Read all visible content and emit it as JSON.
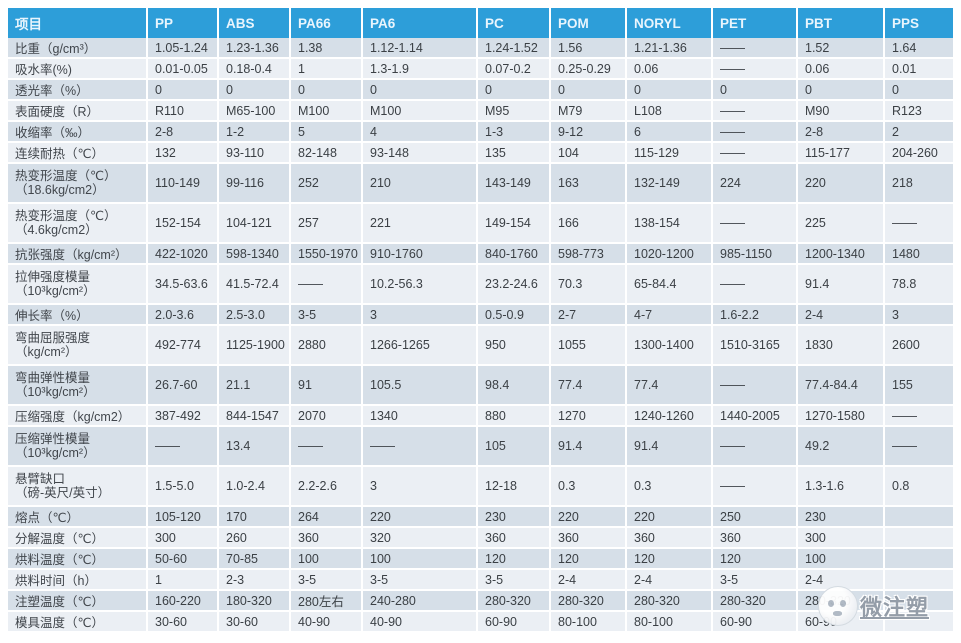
{
  "colors": {
    "header_bg": "#2d9ed9",
    "header_text": "#e9f5fd",
    "row_odd": "#d6dfe8",
    "row_even": "#ebeff4",
    "cell_text": "#3b4045"
  },
  "watermark": {
    "text": "微注塑",
    "logo": "mascot-face-icon"
  },
  "table": {
    "columns": [
      "项目",
      "PP",
      "ABS",
      "PA66",
      "PA6",
      "PC",
      "POM",
      "NORYL",
      "PET",
      "PBT",
      "PPS"
    ],
    "rows": [
      {
        "label": "比重（g/cm³）",
        "values": [
          "1.05-1.24",
          "1.23-1.36",
          "1.38",
          "1.12-1.14",
          "1.24-1.52",
          "1.56",
          "1.21-1.36",
          "——",
          "1.52",
          "1.64"
        ]
      },
      {
        "label": "吸水率(%)",
        "values": [
          "0.01-0.05",
          "0.18-0.4",
          "1",
          "1.3-1.9",
          "0.07-0.2",
          "0.25-0.29",
          "0.06",
          "——",
          "0.06",
          "0.01"
        ]
      },
      {
        "label": "透光率（%）",
        "values": [
          "0",
          "0",
          "0",
          "0",
          "0",
          "0",
          "0",
          "0",
          "0",
          "0"
        ]
      },
      {
        "label": "表面硬度（R）",
        "values": [
          "R110",
          "M65-100",
          "M100",
          "M100",
          "M95",
          "M79",
          "L108",
          "——",
          "M90",
          "R123"
        ]
      },
      {
        "label": "收缩率（‰）",
        "values": [
          "2-8",
          "1-2",
          "5",
          "4",
          "1-3",
          "9-12",
          "6",
          "——",
          "2-8",
          "2"
        ]
      },
      {
        "label": "连续耐热（℃）",
        "values": [
          "132",
          "93-110",
          "82-148",
          "93-148",
          "135",
          "104",
          "115-129",
          "——",
          "115-177",
          "204-260"
        ]
      },
      {
        "label": "热变形温度（℃）",
        "label2": "（18.6kg/cm2）",
        "values": [
          "110-149",
          "99-116",
          "252",
          "210",
          "143-149",
          "163",
          "132-149",
          "224",
          "220",
          "218"
        ]
      },
      {
        "label": "热变形温度（℃）",
        "label2": "（4.6kg/cm2）",
        "values": [
          "152-154",
          "104-121",
          "257",
          "221",
          "149-154",
          "166",
          "138-154",
          "——",
          "225",
          "——"
        ]
      },
      {
        "label": "抗张强度（kg/cm²）",
        "values": [
          "422-1020",
          "598-1340",
          "1550-1970",
          "910-1760",
          "840-1760",
          "598-773",
          "1020-1200",
          "985-1150",
          "1200-1340",
          "1480"
        ]
      },
      {
        "label": "拉伸强度模量",
        "label2": "（10³kg/cm²）",
        "values": [
          "34.5-63.6",
          "41.5-72.4",
          "——",
          "10.2-56.3",
          "23.2-24.6",
          "70.3",
          "65-84.4",
          "——",
          "91.4",
          "78.8"
        ]
      },
      {
        "label": "伸长率（%）",
        "values": [
          "2.0-3.6",
          "2.5-3.0",
          "3-5",
          "3",
          "0.5-0.9",
          "2-7",
          "4-7",
          "1.6-2.2",
          "2-4",
          "3"
        ]
      },
      {
        "label": "弯曲屈服强度",
        "label2": "（kg/cm²）",
        "values": [
          "492-774",
          "1125-1900",
          "2880",
          "1266-1265",
          "950",
          "1055",
          "1300-1400",
          "1510-3165",
          "1830",
          "2600"
        ]
      },
      {
        "label": "弯曲弹性模量",
        "label2": "（10³kg/cm²）",
        "values": [
          "26.7-60",
          "21.1",
          "91",
          "105.5",
          "98.4",
          "77.4",
          "77.4",
          "——",
          "77.4-84.4",
          "155"
        ]
      },
      {
        "label": "压缩强度（kg/cm2）",
        "values": [
          "387-492",
          "844-1547",
          "2070",
          "1340",
          "880",
          "1270",
          "1240-1260",
          "1440-2005",
          "1270-1580",
          "——"
        ]
      },
      {
        "label": "压缩弹性模量",
        "label2": "（10³kg/cm²）",
        "values": [
          "——",
          "13.4",
          "——",
          "——",
          "105",
          "91.4",
          "91.4",
          "——",
          "49.2",
          "——"
        ]
      },
      {
        "label": "悬臂缺口",
        "label2": "（磅-英尺/英寸）",
        "values": [
          "1.5-5.0",
          "1.0-2.4",
          "2.2-2.6",
          "3",
          "12-18",
          "0.3",
          "0.3",
          "——",
          "1.3-1.6",
          "0.8"
        ]
      },
      {
        "label": "熔点（℃）",
        "values": [
          "105-120",
          "170",
          "264",
          "220",
          "230",
          "220",
          "220",
          "250",
          "230",
          ""
        ]
      },
      {
        "label": "分解温度（℃）",
        "values": [
          "300",
          "260",
          "360",
          "320",
          "360",
          "360",
          "360",
          "360",
          "300",
          ""
        ]
      },
      {
        "label": "烘料温度（℃）",
        "values": [
          "50-60",
          "70-85",
          "100",
          "100",
          "120",
          "120",
          "120",
          "120",
          "100",
          ""
        ]
      },
      {
        "label": "烘料时间（h）",
        "values": [
          "1",
          "2-3",
          "3-5",
          "3-5",
          "3-5",
          "2-4",
          "2-4",
          "3-5",
          "2-4",
          ""
        ]
      },
      {
        "label": "注塑温度（℃）",
        "values": [
          "160-220",
          "180-320",
          "280左右",
          "240-280",
          "280-320",
          "280-320",
          "280-320",
          "280-320",
          "280-320",
          ""
        ]
      },
      {
        "label": "模具温度（℃）",
        "values": [
          "30-60",
          "30-60",
          "40-90",
          "40-90",
          "60-90",
          "80-100",
          "80-100",
          "60-90",
          "60-90",
          ""
        ]
      }
    ]
  }
}
